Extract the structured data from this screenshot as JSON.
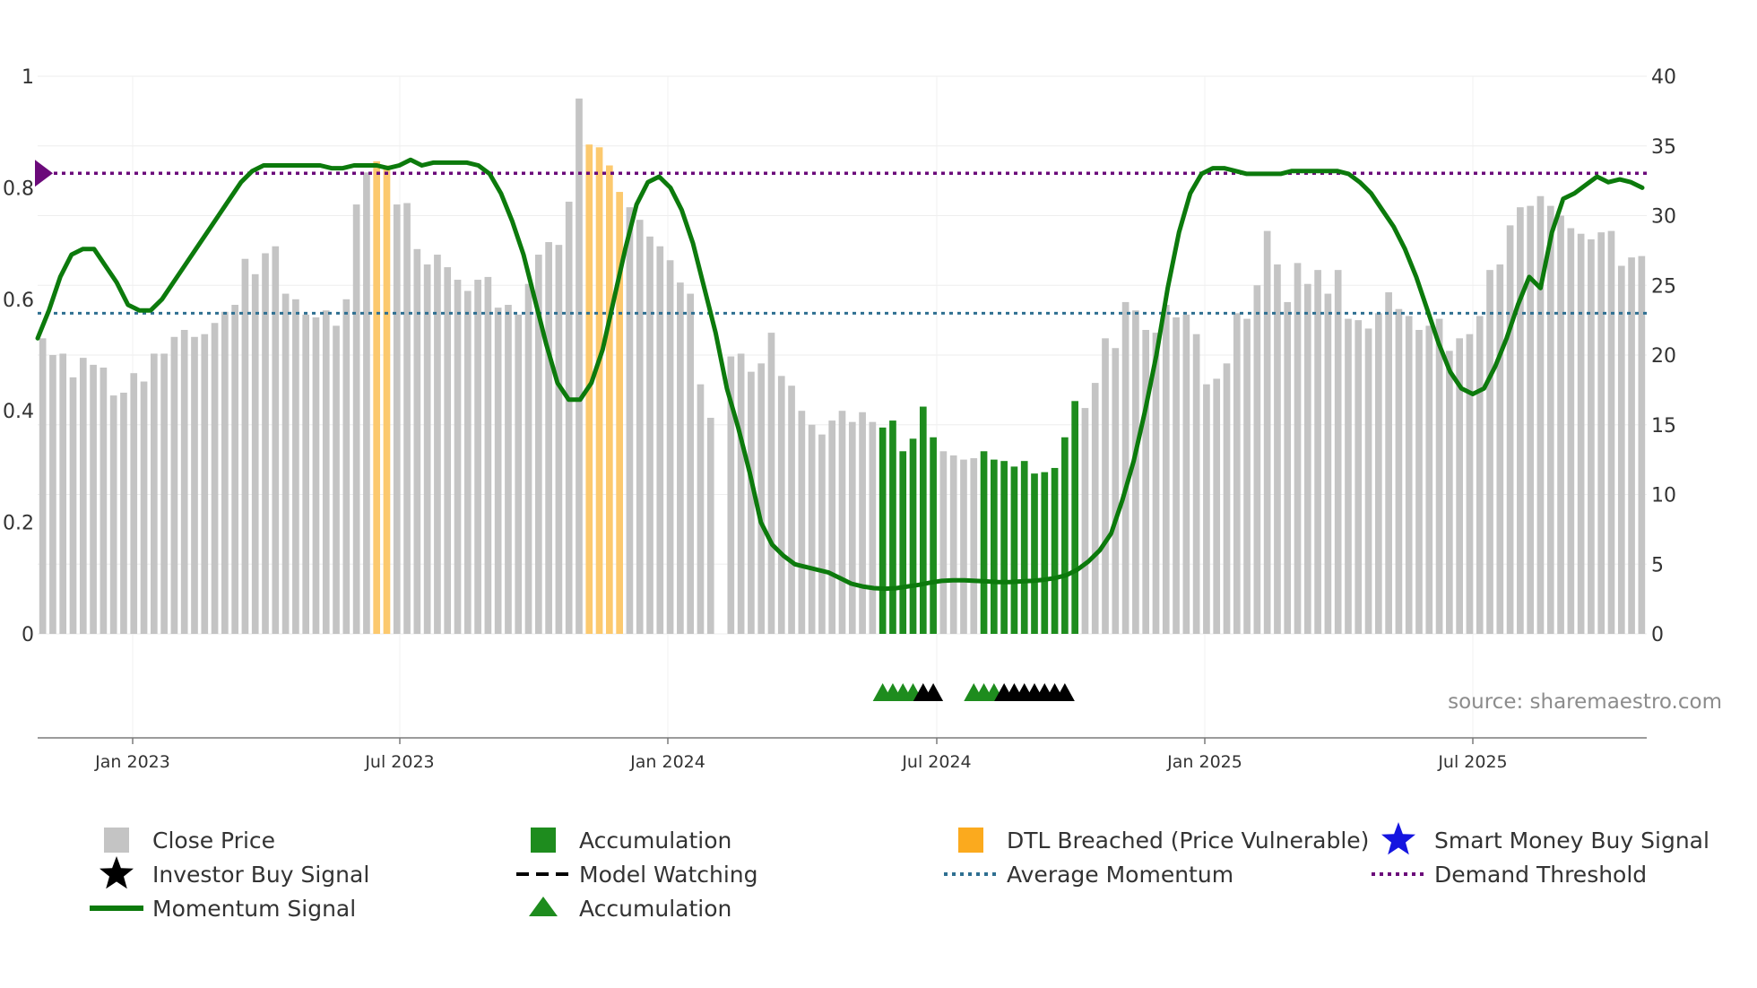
{
  "chart_data": {
    "type": "bar",
    "title": "",
    "source": "source: sharemaestro.com",
    "x_ticks": [
      "Jan 2023",
      "Jul 2023",
      "Jan 2024",
      "Jul 2024",
      "Jan 2025",
      "Jul 2025"
    ],
    "y_left": {
      "range": [
        0,
        1
      ],
      "ticks": [
        "0",
        "0.2",
        "0.4",
        "0.6",
        "0.8",
        "1"
      ]
    },
    "y_right": {
      "range": [
        0,
        40
      ],
      "ticks": [
        "0",
        "5",
        "10",
        "15",
        "20",
        "25",
        "30",
        "35",
        "40"
      ]
    },
    "close_price": [
      21.2,
      20.0,
      20.1,
      18.4,
      19.8,
      19.3,
      19.1,
      17.1,
      17.3,
      18.7,
      18.1,
      20.1,
      20.1,
      21.3,
      21.8,
      21.3,
      21.5,
      22.3,
      23.1,
      23.6,
      26.9,
      25.8,
      27.3,
      27.8,
      24.4,
      24.0,
      22.9,
      22.7,
      23.2,
      22.1,
      24.0,
      30.8,
      33.1,
      33.9,
      33.6,
      30.8,
      30.9,
      27.6,
      26.5,
      27.2,
      26.3,
      25.4,
      24.6,
      25.4,
      25.6,
      23.4,
      23.6,
      22.9,
      25.1,
      27.2,
      28.1,
      27.9,
      31.0,
      38.4,
      35.1,
      34.9,
      33.6,
      31.7,
      30.6,
      29.7,
      28.5,
      27.8,
      26.8,
      25.2,
      24.4,
      17.9,
      15.5,
      0,
      19.9,
      20.1,
      18.8,
      19.4,
      21.6,
      18.5,
      17.8,
      16.0,
      15.0,
      14.3,
      15.3,
      16.0,
      15.2,
      15.9,
      15.2,
      14.8,
      15.3,
      13.1,
      14.0,
      16.3,
      14.1,
      13.1,
      12.8,
      12.5,
      12.6,
      13.1,
      12.5,
      12.4,
      12.0,
      12.4,
      11.5,
      11.6,
      11.9,
      14.1,
      16.7,
      16.2,
      18.0,
      21.2,
      20.5,
      23.8,
      23.2,
      21.8,
      21.6,
      23.6,
      22.7,
      22.9,
      21.5,
      17.9,
      18.3,
      19.4,
      23.0,
      22.6,
      25.0,
      28.9,
      26.5,
      23.8,
      26.6,
      25.1,
      26.1,
      24.4,
      26.1,
      22.6,
      22.5,
      21.9,
      23.0,
      24.5,
      23.3,
      22.8,
      21.8,
      22.1,
      22.6,
      20.3,
      21.2,
      21.5,
      22.8,
      26.1,
      26.5,
      29.3,
      30.6,
      30.7,
      31.4,
      30.7,
      30.0,
      29.1,
      28.7,
      28.3,
      28.8,
      28.9,
      26.4,
      27.0,
      27.1
    ],
    "accumulation_range": [
      83,
      102
    ],
    "accumulation_gap": [
      89,
      92
    ],
    "dtl_breached_ranges": [
      [
        33,
        34
      ],
      [
        54,
        57
      ]
    ],
    "momentum_signal": [
      0.53,
      0.58,
      0.64,
      0.68,
      0.69,
      0.69,
      0.66,
      0.63,
      0.59,
      0.58,
      0.58,
      0.6,
      0.63,
      0.66,
      0.69,
      0.72,
      0.75,
      0.78,
      0.81,
      0.83,
      0.84,
      0.84,
      0.84,
      0.84,
      0.84,
      0.84,
      0.835,
      0.835,
      0.84,
      0.84,
      0.84,
      0.835,
      0.84,
      0.85,
      0.84,
      0.845,
      0.845,
      0.845,
      0.845,
      0.84,
      0.825,
      0.79,
      0.74,
      0.68,
      0.6,
      0.52,
      0.45,
      0.42,
      0.42,
      0.45,
      0.51,
      0.6,
      0.69,
      0.77,
      0.81,
      0.82,
      0.8,
      0.76,
      0.7,
      0.62,
      0.54,
      0.44,
      0.37,
      0.29,
      0.2,
      0.16,
      0.14,
      0.125,
      0.12,
      0.115,
      0.11,
      0.1,
      0.09,
      0.085,
      0.082,
      0.081,
      0.082,
      0.085,
      0.088,
      0.092,
      0.095,
      0.096,
      0.096,
      0.095,
      0.094,
      0.093,
      0.093,
      0.094,
      0.095,
      0.097,
      0.1,
      0.105,
      0.115,
      0.13,
      0.15,
      0.18,
      0.24,
      0.31,
      0.4,
      0.5,
      0.62,
      0.72,
      0.79,
      0.825,
      0.835,
      0.835,
      0.83,
      0.825,
      0.825,
      0.825,
      0.825,
      0.83,
      0.83,
      0.83,
      0.83,
      0.83,
      0.825,
      0.81,
      0.79,
      0.76,
      0.73,
      0.69,
      0.64,
      0.58,
      0.52,
      0.47,
      0.44,
      0.43,
      0.44,
      0.48,
      0.53,
      0.59,
      0.64,
      0.62,
      0.72,
      0.78,
      0.79,
      0.805,
      0.82,
      0.81,
      0.815,
      0.81,
      0.8
    ],
    "average_momentum": 0.575,
    "demand_threshold": 0.826,
    "accumulation_markers": [
      83,
      84,
      85,
      86,
      92,
      93,
      94
    ],
    "investor_buy_markers": [
      87,
      88,
      95,
      96,
      97,
      98,
      99,
      100,
      101
    ],
    "legend": [
      "Close Price",
      "Accumulation",
      "DTL Breached (Price Vulnerable)",
      "Smart Money Buy Signal",
      "Investor Buy Signal",
      "Model Watching",
      "Average Momentum",
      "Demand Threshold",
      "Momentum Signal",
      "Accumulation"
    ],
    "colors": {
      "close_price": "#c4c4c4",
      "accumulation": "#1e8c1e",
      "dtl": "#fcc96e",
      "momentum": "#0c7a0c",
      "average_momentum": "#2e6f91",
      "demand_threshold": "#6b0a7a",
      "investor": "#000000",
      "smart_money": "#1515e0"
    }
  }
}
